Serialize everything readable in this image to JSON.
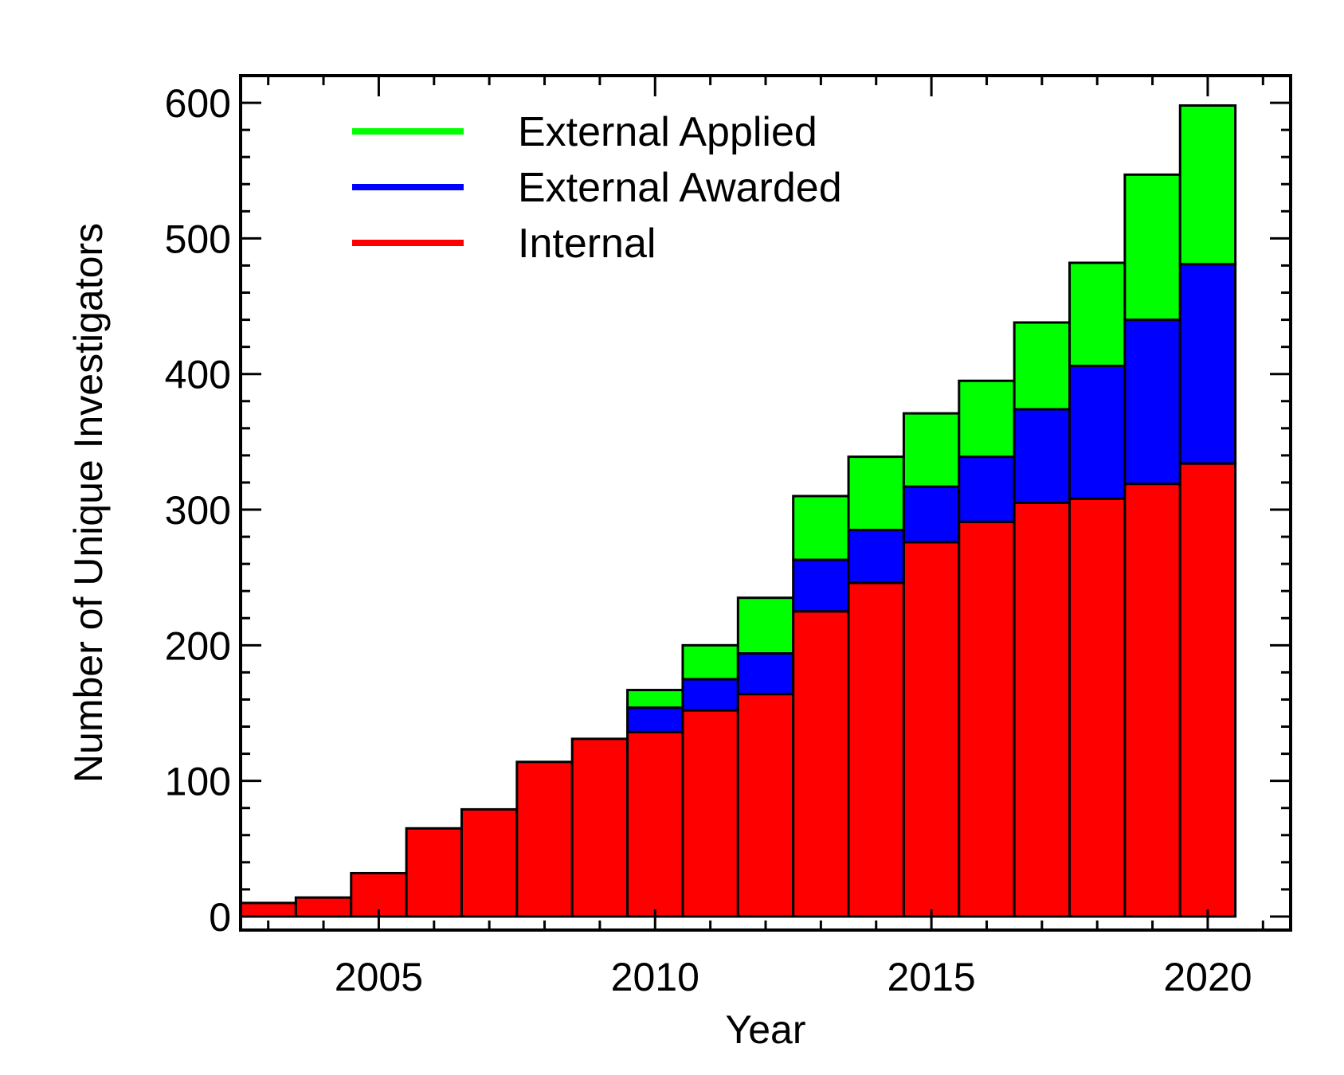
{
  "chart_data": {
    "type": "bar",
    "stacked": true,
    "title": "",
    "xlabel": "Year",
    "ylabel": "Number of Unique Investigators",
    "xlim": [
      2002.5,
      2021.5
    ],
    "ylim": [
      -10,
      620
    ],
    "xticks": [
      2005,
      2010,
      2015,
      2020
    ],
    "yticks": [
      0,
      100,
      200,
      300,
      400,
      500,
      600
    ],
    "grid": false,
    "legend_position": "top-left",
    "categories": [
      2003,
      2004,
      2005,
      2006,
      2007,
      2008,
      2009,
      2010,
      2011,
      2012,
      2013,
      2014,
      2015,
      2016,
      2017,
      2018,
      2019,
      2020
    ],
    "series": [
      {
        "name": "Internal",
        "color": "#ff0000",
        "values": [
          10,
          14,
          32,
          65,
          79,
          114,
          131,
          136,
          152,
          164,
          225,
          246,
          276,
          291,
          305,
          308,
          319,
          334
        ]
      },
      {
        "name": "External Awarded",
        "color": "#0000ff",
        "values": [
          0,
          0,
          0,
          0,
          0,
          0,
          0,
          18,
          23,
          30,
          38,
          39,
          41,
          48,
          69,
          98,
          121,
          147
        ]
      },
      {
        "name": "External Applied",
        "color": "#00ff00",
        "values": [
          0,
          0,
          0,
          0,
          0,
          0,
          0,
          13,
          25,
          41,
          47,
          54,
          54,
          56,
          64,
          76,
          107,
          117
        ]
      }
    ],
    "legend_order": [
      "External Applied",
      "External Awarded",
      "Internal"
    ]
  }
}
